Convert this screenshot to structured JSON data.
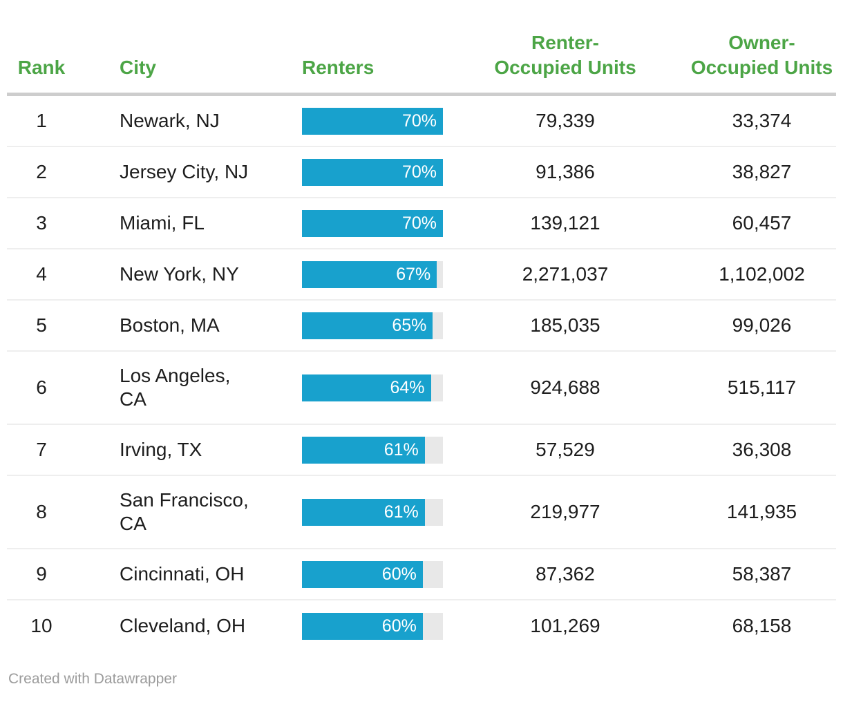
{
  "colors": {
    "header_green": "#4CA546",
    "bar_blue": "#18A1CD",
    "bar_track_gray": "#E8E8E8",
    "body_text": "#1D1D1D",
    "footer_text": "#9B9B9B",
    "header_rule": "#CDCDCD",
    "row_separator": "#EEEEEE"
  },
  "header": {
    "columns": [
      {
        "label": "Rank"
      },
      {
        "label": "City"
      },
      {
        "label": "Renters"
      },
      {
        "label": "Renter-\nOccupied Units"
      },
      {
        "label": "Owner-\nOccupied Units"
      }
    ]
  },
  "footer": {
    "credit": "Created with Datawrapper"
  },
  "chart_data": {
    "type": "table",
    "columns": [
      "Rank",
      "City",
      "Renters",
      "Renter-Occupied Units",
      "Owner-Occupied Units"
    ],
    "bar_column": "Renters",
    "bar_scale_max_percent": 70,
    "rows": [
      {
        "rank": "1",
        "city": "Newark, NJ",
        "renters_pct": 70,
        "renters_label": "70%",
        "renter_occupied": "79,339",
        "owner_occupied": "33,374"
      },
      {
        "rank": "2",
        "city": "Jersey City, NJ",
        "renters_pct": 70,
        "renters_label": "70%",
        "renter_occupied": "91,386",
        "owner_occupied": "38,827"
      },
      {
        "rank": "3",
        "city": "Miami, FL",
        "renters_pct": 70,
        "renters_label": "70%",
        "renter_occupied": "139,121",
        "owner_occupied": "60,457"
      },
      {
        "rank": "4",
        "city": "New York, NY",
        "renters_pct": 67,
        "renters_label": "67%",
        "renter_occupied": "2,271,037",
        "owner_occupied": "1,102,002"
      },
      {
        "rank": "5",
        "city": "Boston, MA",
        "renters_pct": 65,
        "renters_label": "65%",
        "renter_occupied": "185,035",
        "owner_occupied": "99,026"
      },
      {
        "rank": "6",
        "city": "Los Angeles,\nCA",
        "renters_pct": 64,
        "renters_label": "64%",
        "renter_occupied": "924,688",
        "owner_occupied": "515,117"
      },
      {
        "rank": "7",
        "city": "Irving, TX",
        "renters_pct": 61,
        "renters_label": "61%",
        "renter_occupied": "57,529",
        "owner_occupied": "36,308"
      },
      {
        "rank": "8",
        "city": "San Francisco,\nCA",
        "renters_pct": 61,
        "renters_label": "61%",
        "renter_occupied": "219,977",
        "owner_occupied": "141,935"
      },
      {
        "rank": "9",
        "city": "Cincinnati, OH",
        "renters_pct": 60,
        "renters_label": "60%",
        "renter_occupied": "87,362",
        "owner_occupied": "58,387"
      },
      {
        "rank": "10",
        "city": "Cleveland, OH",
        "renters_pct": 60,
        "renters_label": "60%",
        "renter_occupied": "101,269",
        "owner_occupied": "68,158"
      }
    ]
  }
}
